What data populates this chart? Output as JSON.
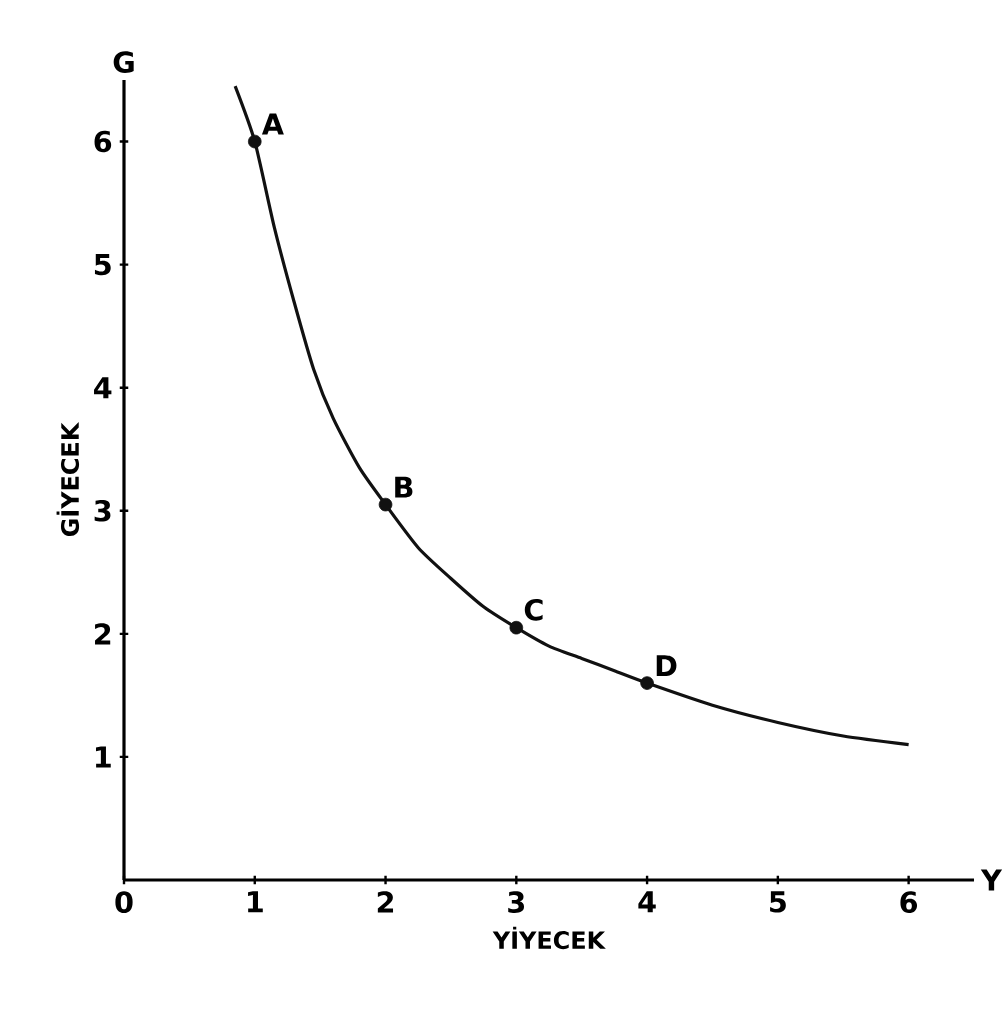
{
  "chart_data": {
    "type": "line",
    "xlabel": "YİYECEK",
    "ylabel": "GİYECEK",
    "xlim": [
      0,
      6.5
    ],
    "ylim": [
      0,
      6.5
    ],
    "xticks": [
      0,
      1,
      2,
      3,
      4,
      5,
      6
    ],
    "yticks": [
      1,
      2,
      3,
      4,
      5,
      6
    ],
    "grid": false,
    "series": [
      {
        "color": "#111111",
        "marker": "none",
        "line_style": "solid",
        "x": [
          0.85,
          1,
          1.15,
          1.3,
          1.45,
          1.6,
          1.8,
          2,
          2.25,
          2.5,
          2.75,
          3,
          3.25,
          3.5,
          3.75,
          4,
          4.5,
          5,
          5.5,
          6
        ],
        "values": [
          6.45,
          6,
          5.3,
          4.7,
          4.15,
          3.75,
          3.35,
          3.05,
          2.7,
          2.45,
          2.22,
          2.05,
          1.9,
          1.8,
          1.7,
          1.6,
          1.42,
          1.28,
          1.17,
          1.1
        ]
      },
      {
        "type": "scatter",
        "color": "#111111",
        "marker": "circle",
        "x": [
          1,
          2,
          3,
          4
        ],
        "values": [
          6,
          3.05,
          2.05,
          1.6
        ]
      }
    ],
    "annotations": [
      "G",
      "Y",
      {
        "text": "A",
        "x": 1,
        "y": 6
      },
      {
        "text": "B",
        "x": 2,
        "y": 3.05
      },
      {
        "text": "C",
        "x": 3,
        "y": 2.05
      },
      {
        "text": "D",
        "x": 4,
        "y": 1.6
      }
    ]
  }
}
